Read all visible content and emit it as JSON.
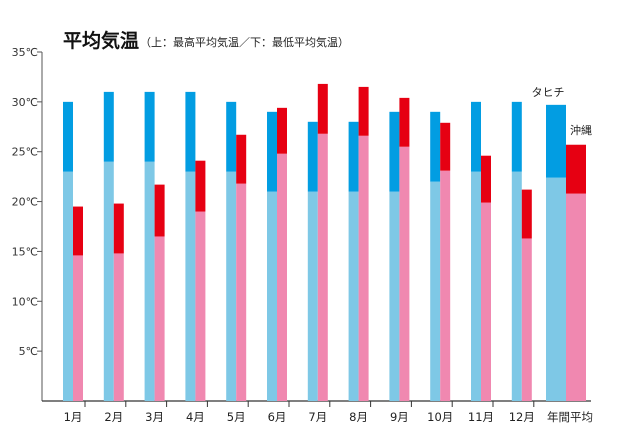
{
  "chart_data": {
    "type": "bar",
    "title": "平均気温",
    "subtitle": "（上：最高平均気温／下：最低平均気温）",
    "categories": [
      "1月",
      "2月",
      "3月",
      "4月",
      "5月",
      "6月",
      "7月",
      "8月",
      "9月",
      "10月",
      "11月",
      "12月",
      "年間平均"
    ],
    "y_ticks": [
      "5℃",
      "10℃",
      "15℃",
      "20℃",
      "25℃",
      "30℃",
      "35℃"
    ],
    "ylim": [
      0,
      35
    ],
    "series": [
      {
        "name": "タヒチ",
        "max_values": [
          30,
          31,
          31,
          31,
          30,
          29,
          28,
          28,
          29,
          29,
          30,
          30,
          29.7
        ],
        "min_values": [
          23,
          24,
          24,
          23,
          23,
          21,
          21,
          21,
          21,
          22,
          23,
          23,
          22.4
        ],
        "max_color": "#029de2",
        "min_color": "#7ec8e6"
      },
      {
        "name": "沖縄",
        "max_values": [
          19.5,
          19.8,
          21.7,
          24.1,
          26.7,
          29.4,
          31.8,
          31.5,
          30.4,
          27.9,
          24.6,
          21.2,
          25.7
        ],
        "min_values": [
          14.6,
          14.8,
          16.5,
          19.0,
          21.8,
          24.8,
          26.8,
          26.6,
          25.5,
          23.1,
          19.9,
          16.3,
          20.8
        ],
        "max_color": "#e60012",
        "min_color": "#f088b0"
      }
    ]
  }
}
